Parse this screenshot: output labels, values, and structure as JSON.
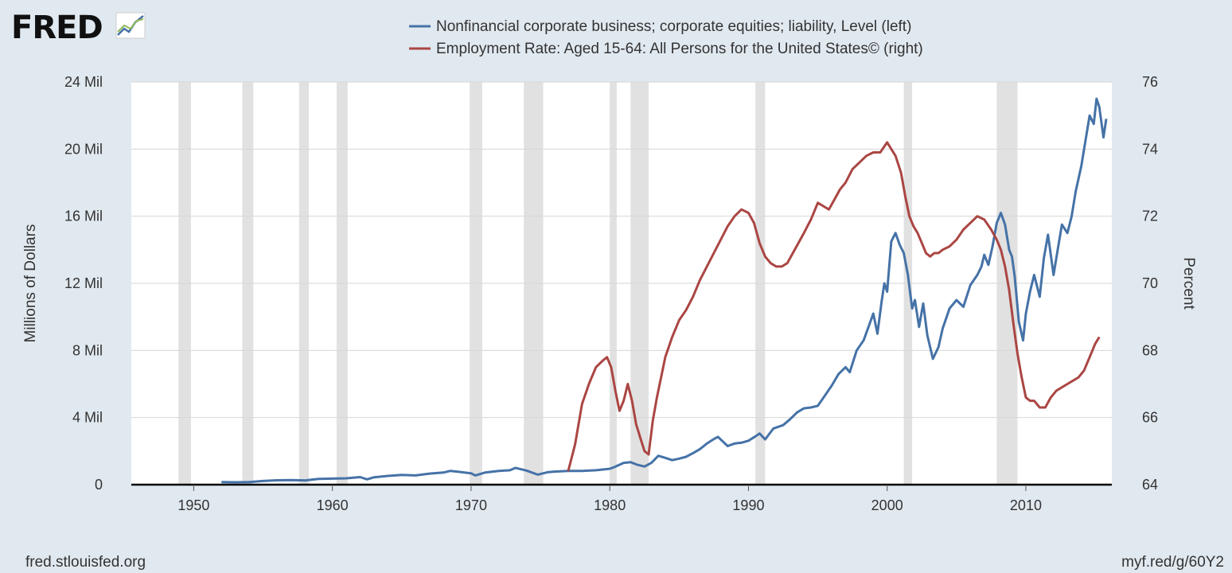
{
  "logo": {
    "text": "FRED"
  },
  "footer": {
    "source": "fred.stlouisfed.org",
    "short_url": "myf.red/g/60Y2"
  },
  "chart_data": {
    "type": "line",
    "title": "",
    "xlabel": "",
    "ylabel_left": "Millions of Dollars",
    "ylabel_right": "Percent",
    "xlim": [
      1945.5,
      2016.2
    ],
    "ylim_left": [
      0,
      24
    ],
    "ylim_right": [
      64,
      76
    ],
    "x_ticks": [
      1950,
      1960,
      1970,
      1980,
      1990,
      2000,
      2010
    ],
    "x_tick_labels": [
      "1950",
      "1960",
      "1970",
      "1980",
      "1990",
      "2000",
      "2010"
    ],
    "y_left_ticks": [
      0,
      4,
      8,
      12,
      16,
      20,
      24
    ],
    "y_left_tick_labels": [
      "0",
      "4 Mil",
      "8 Mil",
      "12 Mil",
      "16 Mil",
      "20 Mil",
      "24 Mil"
    ],
    "y_right_ticks": [
      64,
      66,
      68,
      70,
      72,
      74,
      76
    ],
    "y_right_tick_labels": [
      "64",
      "66",
      "68",
      "70",
      "72",
      "74",
      "76"
    ],
    "recessions": [
      [
        1948.9,
        1949.8
      ],
      [
        1953.5,
        1954.3
      ],
      [
        1957.6,
        1958.3
      ],
      [
        1960.3,
        1961.1
      ],
      [
        1969.9,
        1970.8
      ],
      [
        1973.8,
        1975.2
      ],
      [
        1980.0,
        1980.5
      ],
      [
        1981.5,
        1982.8
      ],
      [
        1990.5,
        1991.2
      ],
      [
        2001.2,
        2001.8
      ],
      [
        2007.9,
        2009.4
      ]
    ],
    "series": [
      {
        "name": "Nonfinancial corporate business; corporate equities; liability, Level (left)",
        "axis": "left",
        "color": "#4572a7",
        "x": [
          1952.0,
          1953.0,
          1954.0,
          1955.0,
          1956.0,
          1957.0,
          1958.0,
          1959.0,
          1960.0,
          1961.0,
          1962.0,
          1962.5,
          1963.0,
          1964.0,
          1965.0,
          1966.0,
          1967.0,
          1968.0,
          1968.5,
          1969.0,
          1970.0,
          1970.3,
          1971.0,
          1972.0,
          1972.8,
          1973.2,
          1974.0,
          1974.8,
          1975.5,
          1976.0,
          1977.0,
          1978.0,
          1979.0,
          1980.0,
          1980.3,
          1981.0,
          1981.5,
          1982.0,
          1982.5,
          1983.0,
          1983.5,
          1984.0,
          1984.5,
          1985.0,
          1985.5,
          1986.0,
          1986.5,
          1987.0,
          1987.5,
          1987.8,
          1988.5,
          1989.0,
          1989.5,
          1990.0,
          1990.5,
          1990.8,
          1991.2,
          1991.8,
          1992.5,
          1993.0,
          1993.5,
          1994.0,
          1994.5,
          1995.0,
          1995.5,
          1996.0,
          1996.5,
          1997.0,
          1997.3,
          1997.8,
          1998.3,
          1998.7,
          1999.0,
          1999.3,
          1999.6,
          1999.8,
          2000.0,
          2000.3,
          2000.6,
          2000.9,
          2001.2,
          2001.5,
          2001.8,
          2002.0,
          2002.3,
          2002.6,
          2002.9,
          2003.3,
          2003.7,
          2004.0,
          2004.5,
          2005.0,
          2005.5,
          2006.0,
          2006.5,
          2006.8,
          2007.0,
          2007.3,
          2007.6,
          2007.9,
          2008.2,
          2008.5,
          2008.8,
          2009.0,
          2009.2,
          2009.5,
          2009.8,
          2010.0,
          2010.3,
          2010.6,
          2011.0,
          2011.3,
          2011.6,
          2012.0,
          2012.3,
          2012.6,
          2013.0,
          2013.3,
          2013.6,
          2014.0,
          2014.3,
          2014.6,
          2014.9,
          2015.1,
          2015.3,
          2015.6,
          2015.8
        ],
        "values": [
          0.15,
          0.14,
          0.15,
          0.22,
          0.26,
          0.27,
          0.25,
          0.34,
          0.36,
          0.38,
          0.45,
          0.32,
          0.44,
          0.52,
          0.58,
          0.55,
          0.66,
          0.72,
          0.82,
          0.78,
          0.68,
          0.55,
          0.72,
          0.82,
          0.86,
          1.0,
          0.84,
          0.6,
          0.74,
          0.78,
          0.82,
          0.82,
          0.86,
          0.95,
          1.04,
          1.3,
          1.34,
          1.18,
          1.08,
          1.3,
          1.72,
          1.6,
          1.46,
          1.55,
          1.66,
          1.88,
          2.12,
          2.45,
          2.72,
          2.85,
          2.3,
          2.45,
          2.5,
          2.62,
          2.88,
          3.05,
          2.7,
          3.35,
          3.55,
          3.9,
          4.3,
          4.55,
          4.6,
          4.7,
          5.3,
          5.9,
          6.6,
          7.0,
          6.7,
          8.0,
          8.6,
          9.5,
          10.2,
          9.0,
          10.9,
          12.0,
          11.5,
          14.5,
          15.0,
          14.3,
          13.8,
          12.5,
          10.5,
          11.0,
          9.4,
          10.8,
          8.9,
          7.5,
          8.2,
          9.3,
          10.5,
          11.0,
          10.6,
          11.9,
          12.5,
          13.0,
          13.7,
          13.1,
          14.2,
          15.6,
          16.2,
          15.5,
          14.0,
          13.6,
          12.4,
          9.7,
          8.6,
          10.2,
          11.5,
          12.5,
          11.2,
          13.5,
          14.9,
          12.5,
          14.0,
          15.5,
          15.0,
          16.0,
          17.5,
          19.0,
          20.5,
          22.0,
          21.5,
          23.0,
          22.5,
          20.7,
          21.8
        ]
      },
      {
        "name": "Employment Rate: Aged 15-64: All Persons for the United States© (right)",
        "axis": "right",
        "color": "#aa4643",
        "x": [
          1977.0,
          1977.5,
          1978.0,
          1978.5,
          1979.0,
          1979.5,
          1979.8,
          1980.1,
          1980.4,
          1980.7,
          1981.0,
          1981.3,
          1981.6,
          1981.9,
          1982.2,
          1982.5,
          1982.8,
          1983.1,
          1983.4,
          1983.7,
          1984.0,
          1984.5,
          1985.0,
          1985.5,
          1986.0,
          1986.5,
          1987.0,
          1987.5,
          1988.0,
          1988.5,
          1989.0,
          1989.5,
          1990.0,
          1990.4,
          1990.8,
          1991.2,
          1991.6,
          1992.0,
          1992.4,
          1992.8,
          1993.2,
          1993.6,
          1994.0,
          1994.5,
          1995.0,
          1995.4,
          1995.8,
          1996.2,
          1996.6,
          1997.0,
          1997.5,
          1998.0,
          1998.5,
          1999.0,
          1999.5,
          2000.0,
          2000.3,
          2000.6,
          2001.0,
          2001.3,
          2001.6,
          2001.9,
          2002.2,
          2002.5,
          2002.8,
          2003.1,
          2003.4,
          2003.7,
          2004.0,
          2004.5,
          2005.0,
          2005.5,
          2006.0,
          2006.5,
          2007.0,
          2007.5,
          2007.9,
          2008.2,
          2008.5,
          2008.8,
          2009.1,
          2009.4,
          2009.7,
          2010.0,
          2010.3,
          2010.6,
          2011.0,
          2011.4,
          2011.8,
          2012.2,
          2012.6,
          2013.0,
          2013.4,
          2013.8,
          2014.2,
          2014.6,
          2015.0,
          2015.3
        ],
        "values": [
          64.4,
          65.2,
          66.4,
          67.0,
          67.5,
          67.7,
          67.8,
          67.5,
          66.8,
          66.2,
          66.5,
          67.0,
          66.5,
          65.8,
          65.4,
          65.0,
          64.9,
          65.9,
          66.6,
          67.2,
          67.8,
          68.4,
          68.9,
          69.2,
          69.6,
          70.1,
          70.5,
          70.9,
          71.3,
          71.7,
          72.0,
          72.2,
          72.1,
          71.8,
          71.2,
          70.8,
          70.6,
          70.5,
          70.5,
          70.6,
          70.9,
          71.2,
          71.5,
          71.9,
          72.4,
          72.3,
          72.2,
          72.5,
          72.8,
          73.0,
          73.4,
          73.6,
          73.8,
          73.9,
          73.9,
          74.2,
          74.0,
          73.8,
          73.3,
          72.6,
          72.0,
          71.7,
          71.5,
          71.2,
          70.9,
          70.8,
          70.9,
          70.9,
          71.0,
          71.1,
          71.3,
          71.6,
          71.8,
          72.0,
          71.9,
          71.6,
          71.3,
          71.0,
          70.5,
          69.8,
          68.8,
          67.9,
          67.2,
          66.6,
          66.5,
          66.5,
          66.3,
          66.3,
          66.6,
          66.8,
          66.9,
          67.0,
          67.1,
          67.2,
          67.4,
          67.8,
          68.2,
          68.4
        ]
      }
    ]
  }
}
